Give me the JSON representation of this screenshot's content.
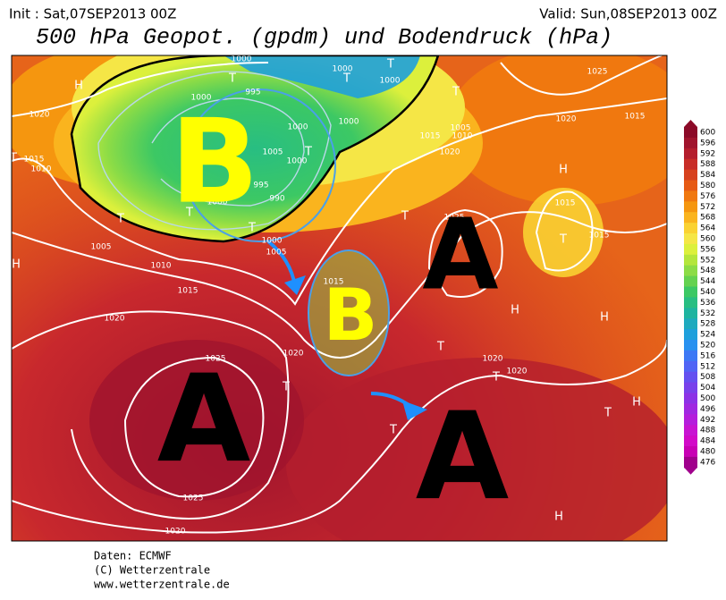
{
  "header": {
    "init": "Init : Sat,07SEP2013 00Z",
    "valid": "Valid: Sun,08SEP2013 00Z",
    "title": "500 hPa Geopot. (gpdm) und Bodendruck (hPa)"
  },
  "footer": [
    "Daten: ECMWF",
    "(C) Wetterzentrale",
    "www.wetterzentrale.de"
  ],
  "pressure_centers": [
    "B",
    "B",
    "A",
    "A",
    "A"
  ],
  "symbols": [
    "H",
    "T",
    "H",
    "T",
    "T",
    "T",
    "T",
    "T",
    "T",
    "T",
    "T",
    "T",
    "H",
    "T",
    "H",
    "H",
    "T",
    "T",
    "T",
    "T",
    "H",
    "H",
    "T"
  ],
  "isobar_labels": [
    1000,
    1000,
    1000,
    995,
    1000,
    1000,
    1000,
    1005,
    1000,
    995,
    990,
    1000,
    1005,
    1010,
    1015,
    1020,
    1025,
    1020,
    1015,
    1015,
    1010,
    1020,
    1005,
    1010,
    1015,
    1020,
    1025,
    1025,
    1020,
    1020,
    1015,
    1015,
    1015,
    1025,
    1020,
    1020,
    1000,
    1005
  ],
  "colorbar": {
    "labels": [
      600,
      596,
      592,
      588,
      584,
      580,
      576,
      572,
      568,
      564,
      560,
      556,
      552,
      548,
      544,
      540,
      536,
      532,
      528,
      524,
      520,
      516,
      512,
      508,
      504,
      500,
      496,
      492,
      488,
      484,
      480,
      476
    ],
    "colors": [
      "#8c0a28",
      "#a0142d",
      "#b41e2d",
      "#c82d28",
      "#d7411e",
      "#e65a14",
      "#f0780f",
      "#f5960f",
      "#fab41e",
      "#fad232",
      "#f5e646",
      "#dcf03c",
      "#b4e63c",
      "#8cdc46",
      "#64d250",
      "#3cc864",
      "#28be82",
      "#1eb4a0",
      "#1eaabe",
      "#1ea0dc",
      "#2891f0",
      "#3c78f5",
      "#5064f5",
      "#6450f0",
      "#7841eb",
      "#8c32e6",
      "#a028e1",
      "#b41edc",
      "#c814d2",
      "#d20ac8",
      "#c800b4",
      "#a0008c"
    ]
  }
}
